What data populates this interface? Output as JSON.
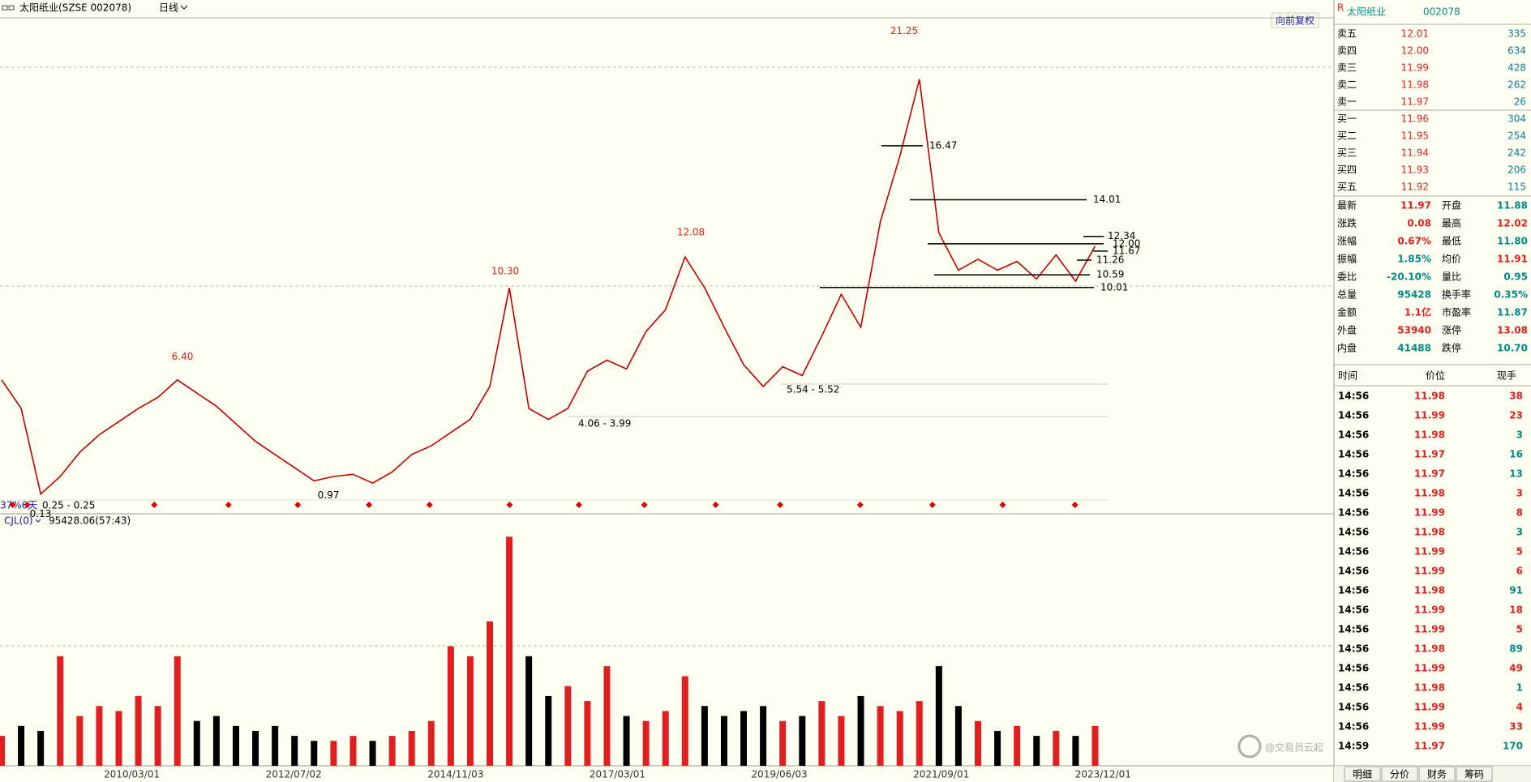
{
  "toolbar": {
    "title": "太阳纸业(SZSE 002078)",
    "period": "日线",
    "adjust": "向前复权"
  },
  "price_chart": {
    "type": "line",
    "color": "#c00000",
    "ylim": [
      -0.3,
      22.3
    ],
    "values": [
      5.8,
      4.5,
      0.6,
      1.4,
      2.5,
      3.3,
      3.9,
      4.5,
      5.0,
      5.8,
      5.2,
      4.6,
      3.8,
      3.0,
      2.4,
      1.8,
      1.2,
      1.4,
      1.5,
      1.1,
      1.6,
      2.4,
      2.8,
      3.4,
      4.0,
      5.5,
      10.0,
      4.5,
      4.0,
      4.5,
      6.2,
      6.7,
      6.3,
      8.0,
      9.0,
      11.4,
      10.0,
      8.2,
      6.5,
      5.5,
      6.4,
      6.0,
      7.8,
      9.7,
      8.2,
      13.0,
      16.0,
      19.5,
      12.5,
      10.8,
      11.3,
      10.8,
      11.2,
      10.4,
      11.5,
      10.3,
      11.9
    ],
    "highs": [
      21.25,
      12.08,
      {
        "value": 10.3,
        "label": "10.30"
      },
      {
        "value": 6.4,
        "label": "6.40"
      }
    ],
    "high_color": "#e02020",
    "lows": [
      0.97,
      0.13
    ],
    "levels": [
      16.47,
      14.01,
      12.34,
      {
        "value": 12,
        "label": "12.00"
      },
      11.67,
      11.26,
      10.59,
      10.01
    ],
    "ranges": [
      "5.54 - 5.52",
      "4.06 - 3.99",
      "0.25 - 0.25"
    ],
    "marker_label": "37%6天"
  },
  "volume_chart": {
    "type": "bar",
    "indicator": "CJL(0)",
    "readout": "95428.06(57:43)",
    "ylim": [
      0,
      2400000
    ],
    "up_color": "#e02020",
    "down_color": "#000000",
    "values": [
      300000,
      400000,
      350000,
      1100000,
      500000,
      600000,
      550000,
      700000,
      600000,
      1100000,
      450000,
      500000,
      400000,
      350000,
      400000,
      300000,
      250000,
      250000,
      300000,
      250000,
      300000,
      350000,
      450000,
      1200000,
      1100000,
      1450000,
      2300000,
      1100000,
      700000,
      800000,
      650000,
      1000000,
      500000,
      450000,
      550000,
      900000,
      600000,
      500000,
      550000,
      600000,
      450000,
      500000,
      650000,
      500000,
      700000,
      600000,
      550000,
      650000,
      1000000,
      600000,
      450000,
      350000,
      400000,
      300000,
      350000,
      300000,
      400000
    ]
  },
  "x_axis": {
    "ticks": [
      "2010/03/01",
      "2012/07/02",
      "2014/11/03",
      "2017/03/01",
      "2019/06/03",
      "2021/09/01",
      "2023/12/01"
    ]
  },
  "quote": {
    "header": {
      "flag": "R",
      "name": "太阳纸业",
      "code": "002078"
    },
    "order_book": [
      {
        "label": "卖五",
        "price": "12.01",
        "volume": "335"
      },
      {
        "label": "卖四",
        "price": "12.00",
        "volume": "634"
      },
      {
        "label": "卖三",
        "price": "11.99",
        "volume": "428"
      },
      {
        "label": "卖二",
        "price": "11.98",
        "volume": "262"
      },
      {
        "label": "卖一",
        "price": "11.97",
        "volume": "26"
      },
      {
        "label": "买一",
        "price": "11.96",
        "volume": "304"
      },
      {
        "label": "买二",
        "price": "11.95",
        "volume": "254"
      },
      {
        "label": "买三",
        "price": "11.94",
        "volume": "242"
      },
      {
        "label": "买四",
        "price": "11.93",
        "volume": "206"
      },
      {
        "label": "买五",
        "price": "11.92",
        "volume": "115"
      }
    ],
    "stats": [
      {
        "label": "最新",
        "value": "11.97",
        "color": "#e02020"
      },
      {
        "label": "开盘",
        "value": "11.88",
        "color": "#008a8a"
      },
      {
        "label": "涨跌",
        "value": "0.08",
        "color": "#e02020"
      },
      {
        "label": "最高",
        "value": "12.02",
        "color": "#e02020"
      },
      {
        "label": "涨幅",
        "value": "0.67%",
        "color": "#e02020"
      },
      {
        "label": "最低",
        "value": "11.80",
        "color": "#008a8a"
      },
      {
        "label": "振幅",
        "value": "1.85%",
        "color": "#008a8a"
      },
      {
        "label": "均价",
        "value": "11.91",
        "color": "#e02020"
      },
      {
        "label": "委比",
        "value": "-20.10%",
        "color": "#008a8a"
      },
      {
        "label": "量比",
        "value": "0.95",
        "color": "#008a8a"
      },
      {
        "label": "总量",
        "value": "95428",
        "color": "#008a8a"
      },
      {
        "label": "换手率",
        "value": "0.35%",
        "color": "#008a8a"
      },
      {
        "label": "金额",
        "value": "1.1亿",
        "color": "#e02020"
      },
      {
        "label": "市盈率",
        "value": "11.87",
        "color": "#008a8a"
      },
      {
        "label": "外盘",
        "value": "53940",
        "color": "#e02020"
      },
      {
        "label": "涨停",
        "value": "13.08",
        "color": "#e02020"
      },
      {
        "label": "内盘",
        "value": "41488",
        "color": "#008a8a"
      },
      {
        "label": "跌停",
        "value": "10.70",
        "color": "#008a8a"
      }
    ],
    "trades": {
      "columns": [
        "时间",
        "价位",
        "现手"
      ],
      "rows": [
        {
          "time": "14:56",
          "price": "11.98",
          "volume": "38",
          "color": "#e02020"
        },
        {
          "time": "14:56",
          "price": "11.99",
          "volume": "23",
          "color": "#e02020"
        },
        {
          "time": "14:56",
          "price": "11.98",
          "volume": "3",
          "color": "#008a8a"
        },
        {
          "time": "14:56",
          "price": "11.97",
          "volume": "16",
          "color": "#008a8a"
        },
        {
          "time": "14:56",
          "price": "11.97",
          "volume": "13",
          "color": "#008a8a"
        },
        {
          "time": "14:56",
          "price": "11.98",
          "volume": "3",
          "color": "#e02020"
        },
        {
          "time": "14:56",
          "price": "11.99",
          "volume": "8",
          "color": "#e02020"
        },
        {
          "time": "14:56",
          "price": "11.98",
          "volume": "3",
          "color": "#008a8a"
        },
        {
          "time": "14:56",
          "price": "11.99",
          "volume": "5",
          "color": "#e02020"
        },
        {
          "time": "14:56",
          "price": "11.99",
          "volume": "6",
          "color": "#e02020"
        },
        {
          "time": "14:56",
          "price": "11.98",
          "volume": "91",
          "color": "#008a8a"
        },
        {
          "time": "14:56",
          "price": "11.99",
          "volume": "18",
          "color": "#e02020"
        },
        {
          "time": "14:56",
          "price": "11.99",
          "volume": "5",
          "color": "#e02020"
        },
        {
          "time": "14:56",
          "price": "11.98",
          "volume": "89",
          "color": "#008a8a"
        },
        {
          "time": "14:56",
          "price": "11.99",
          "volume": "49",
          "color": "#e02020"
        },
        {
          "time": "14:56",
          "price": "11.98",
          "volume": "1",
          "color": "#008a8a"
        },
        {
          "time": "14:56",
          "price": "11.99",
          "volume": "4",
          "color": "#e02020"
        },
        {
          "time": "14:56",
          "price": "11.99",
          "volume": "33",
          "color": "#e02020"
        },
        {
          "time": "14:59",
          "price": "11.97",
          "volume": "170",
          "color": "#008a8a"
        }
      ]
    },
    "tabs": [
      "明细",
      "分价",
      "财务",
      "筹码"
    ]
  },
  "watermark": "@交易员云起"
}
